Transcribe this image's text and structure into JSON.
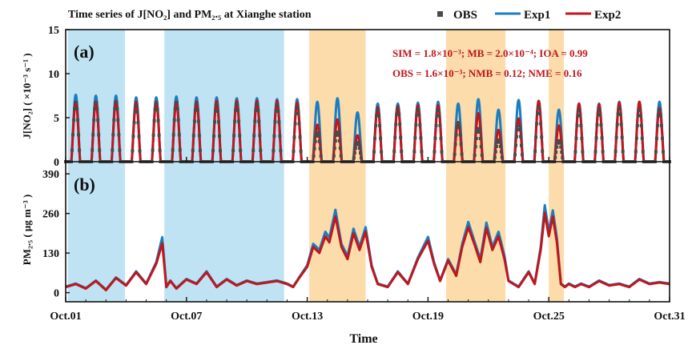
{
  "chart_data": [
    {
      "panel": "(a)",
      "type": "line",
      "title": "Time series of J[NO₂] and PM₂.₅ at Xianghe station",
      "ylabel": "J[NO₂] ( ×10⁻³ s⁻¹ )",
      "ylim": [
        0,
        15
      ],
      "yticks": [
        0,
        5,
        10,
        15
      ],
      "xlim": [
        1,
        31
      ],
      "legend_position": "top-right",
      "series": [
        {
          "name": "OBS",
          "style": "square markers",
          "color": "#4a4a4a",
          "daily_peaks": [
            6.8,
            6.8,
            6.8,
            6.4,
            6.7,
            6.8,
            6.6,
            6.5,
            6.6,
            6.6,
            6.5,
            6.2,
            3.3,
            3.4,
            2.2,
            5.9,
            6.1,
            6.0,
            5.9,
            4.4,
            3.8,
            2.5,
            4.1,
            6.2,
            2.4,
            5.9,
            6.0,
            6.1,
            5.9,
            5.9
          ]
        },
        {
          "name": "Exp1",
          "style": "line",
          "color": "#1a7dc0",
          "daily_peaks": [
            7.6,
            7.5,
            7.5,
            7.3,
            7.3,
            7.4,
            7.3,
            7.3,
            7.2,
            7.2,
            7.1,
            7.1,
            6.8,
            7.2,
            5.6,
            6.6,
            6.6,
            6.7,
            6.8,
            6.6,
            7.1,
            5.9,
            7.0,
            6.9,
            5.9,
            6.6,
            6.6,
            6.8,
            6.8,
            6.8
          ]
        },
        {
          "name": "Exp2",
          "style": "line",
          "color": "#c0161c",
          "daily_peaks": [
            6.8,
            6.8,
            6.9,
            6.8,
            6.8,
            6.8,
            6.8,
            6.9,
            6.9,
            6.9,
            6.9,
            6.7,
            4.2,
            4.8,
            3.0,
            6.2,
            6.3,
            6.4,
            6.4,
            4.5,
            5.5,
            3.6,
            4.9,
            6.9,
            4.1,
            6.6,
            6.5,
            6.7,
            6.8,
            6.1
          ]
        }
      ],
      "stats_line1": "SIM = 1.8×10⁻³; MB = 2.0×10⁻⁴; IOA = 0.99",
      "stats_line2": "OBS = 1.6×10⁻³; NMB = 0.12; NME = 0.16"
    },
    {
      "panel": "(b)",
      "type": "line",
      "ylabel": "PM₂.₅ ( μg m⁻³ )",
      "xlabel": "Time",
      "ylim": [
        -30,
        430
      ],
      "yticks": [
        0,
        130,
        260,
        390
      ],
      "xlim": [
        1,
        31
      ],
      "xticks": [
        1,
        7,
        13,
        19,
        25,
        31
      ],
      "xtick_labels": [
        "Oct.01",
        "Oct.07",
        "Oct.13",
        "Oct.19",
        "Oct.25",
        "Oct.31"
      ],
      "series": [
        {
          "name": "Exp1",
          "color": "#1a7dc0",
          "t": [
            1.0,
            1.5,
            2.0,
            2.5,
            3.0,
            3.5,
            4.0,
            4.5,
            5.0,
            5.5,
            5.8,
            6.0,
            6.2,
            6.5,
            7.0,
            7.5,
            8.0,
            8.5,
            9.0,
            9.5,
            10.0,
            10.5,
            11.0,
            11.5,
            12.0,
            12.3,
            12.6,
            13.0,
            13.3,
            13.6,
            13.9,
            14.1,
            14.4,
            14.7,
            15.0,
            15.3,
            15.6,
            15.9,
            16.2,
            16.5,
            17.0,
            17.5,
            18.0,
            18.5,
            19.0,
            19.3,
            19.6,
            20.0,
            20.4,
            20.7,
            21.0,
            21.3,
            21.6,
            21.9,
            22.2,
            22.5,
            22.8,
            23.0,
            23.5,
            24.0,
            24.3,
            24.6,
            24.8,
            25.0,
            25.2,
            25.4,
            25.6,
            25.8,
            26.0,
            26.3,
            26.6,
            27.0,
            27.5,
            28.0,
            28.5,
            29.0,
            29.5,
            30.0,
            30.5,
            31.0
          ],
          "values": [
            20,
            30,
            15,
            40,
            10,
            50,
            25,
            70,
            30,
            100,
            182,
            20,
            40,
            15,
            45,
            30,
            70,
            20,
            45,
            25,
            40,
            30,
            35,
            40,
            30,
            20,
            50,
            90,
            160,
            140,
            200,
            180,
            272,
            160,
            120,
            210,
            150,
            215,
            90,
            30,
            20,
            70,
            30,
            115,
            183,
            100,
            40,
            110,
            60,
            160,
            232,
            170,
            110,
            230,
            150,
            200,
            120,
            40,
            20,
            70,
            30,
            150,
            287,
            200,
            270,
            180,
            30,
            20,
            30,
            20,
            30,
            20,
            40,
            25,
            30,
            20,
            45,
            30,
            35,
            30
          ]
        },
        {
          "name": "Exp2",
          "color": "#c0161c",
          "t": [
            1.0,
            1.5,
            2.0,
            2.5,
            3.0,
            3.5,
            4.0,
            4.5,
            5.0,
            5.5,
            5.8,
            6.0,
            6.2,
            6.5,
            7.0,
            7.5,
            8.0,
            8.5,
            9.0,
            9.5,
            10.0,
            10.5,
            11.0,
            11.5,
            12.0,
            12.3,
            12.6,
            13.0,
            13.3,
            13.6,
            13.9,
            14.1,
            14.4,
            14.7,
            15.0,
            15.3,
            15.6,
            15.9,
            16.2,
            16.5,
            17.0,
            17.5,
            18.0,
            18.5,
            19.0,
            19.3,
            19.6,
            20.0,
            20.4,
            20.7,
            21.0,
            21.3,
            21.6,
            21.9,
            22.2,
            22.5,
            22.8,
            23.0,
            23.5,
            24.0,
            24.3,
            24.6,
            24.8,
            25.0,
            25.2,
            25.4,
            25.6,
            25.8,
            26.0,
            26.3,
            26.6,
            27.0,
            27.5,
            28.0,
            28.5,
            29.0,
            29.5,
            30.0,
            30.5,
            31.0
          ],
          "values": [
            18,
            28,
            13,
            38,
            8,
            48,
            23,
            67,
            28,
            95,
            162,
            18,
            38,
            13,
            43,
            28,
            67,
            18,
            43,
            23,
            38,
            28,
            33,
            38,
            28,
            18,
            48,
            85,
            150,
            130,
            185,
            165,
            250,
            150,
            110,
            195,
            140,
            200,
            85,
            28,
            18,
            67,
            28,
            110,
            170,
            95,
            38,
            105,
            55,
            150,
            215,
            160,
            100,
            212,
            140,
            185,
            110,
            38,
            18,
            67,
            28,
            140,
            262,
            185,
            250,
            165,
            28,
            18,
            28,
            18,
            28,
            18,
            38,
            23,
            28,
            18,
            43,
            28,
            33,
            28
          ]
        }
      ]
    }
  ],
  "colors": {
    "shade_blue": "#bfe3f3",
    "shade_orange": "#fbdcaa",
    "obs": "#4a4a4a",
    "exp1": "#1a7dc0",
    "exp2": "#c0161c"
  },
  "shading": [
    {
      "from": 1.1,
      "to": 3.95,
      "kind": "blue"
    },
    {
      "from": 5.9,
      "to": 11.85,
      "kind": "blue"
    },
    {
      "from": 13.1,
      "to": 15.9,
      "kind": "orange"
    },
    {
      "from": 19.9,
      "to": 22.85,
      "kind": "orange"
    },
    {
      "from": 25.0,
      "to": 25.75,
      "kind": "orange"
    }
  ]
}
